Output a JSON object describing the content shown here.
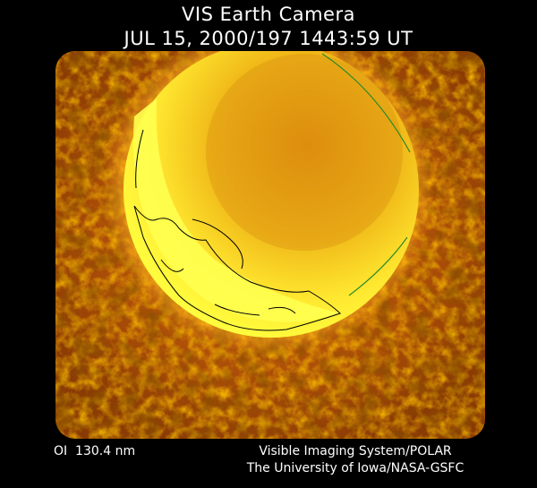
{
  "header": {
    "title": "VIS Earth Camera",
    "timestamp": "JUL 15, 2000/197 1443:59 UT"
  },
  "footer": {
    "wavelength": "OI  130.4 nm",
    "instrument": "Visible Imaging System/POLAR",
    "credit": "The University of Iowa/NASA-GSFC"
  }
}
